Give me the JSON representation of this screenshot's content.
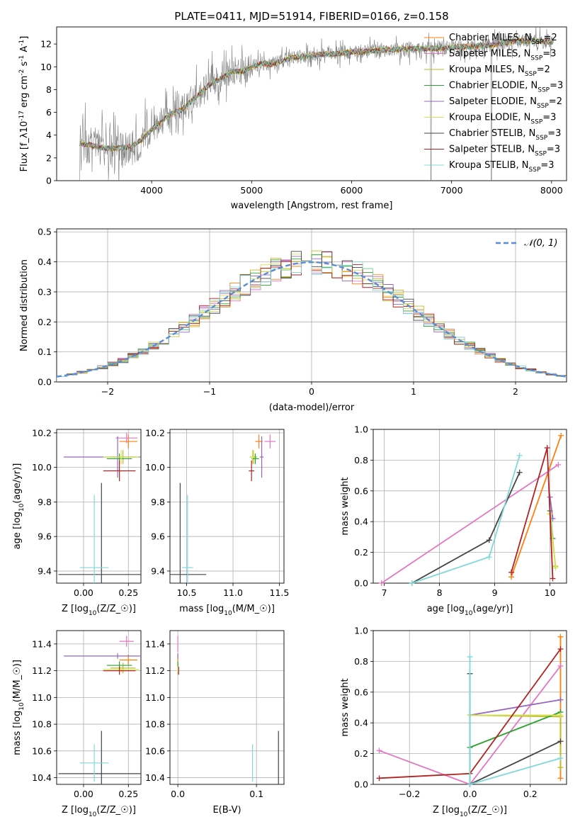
{
  "colors": {
    "spectrum": "#7f7f7f",
    "normal": "#5b8dd6",
    "grid": "#b0b0b0",
    "models": [
      "#ff7f0e",
      "#e377c2",
      "#bcbd22",
      "#2ca02c",
      "#9467bd",
      "#d4e157",
      "#444444",
      "#b22222",
      "#80d8d8"
    ]
  },
  "chart_data": [
    {
      "id": "spectrum",
      "type": "line",
      "title": "PLATE=0411, MJD=51914, FIBERID=0166, z=0.158",
      "xlabel": "wavelength [Angstrom, rest frame]",
      "ylabel": "Flux [f_λ 10^-17 erg cm^-2 s^-1 A^-1]",
      "xlim": [
        3050,
        8150
      ],
      "ylim": [
        0,
        13.5
      ],
      "xticks": [
        "4000",
        "5000",
        "6000",
        "7000",
        "8000"
      ],
      "yticks": [
        "0",
        "2",
        "4",
        "6",
        "8",
        "10",
        "12"
      ],
      "grid": false,
      "legend_position": "upper-right",
      "model_continuum": {
        "x": [
          3280,
          3400,
          3500,
          3600,
          3700,
          3800,
          3900,
          4000,
          4100,
          4200,
          4300,
          4400,
          4500,
          4600,
          4700,
          4800,
          4900,
          5000,
          5100,
          5200,
          5300,
          5400,
          5500,
          5600,
          5700,
          5800,
          5900,
          6000,
          6200,
          6400,
          6600,
          6800,
          7000,
          7200,
          7400,
          7600,
          7800,
          8000
        ],
        "y": [
          3.3,
          3.1,
          2.9,
          2.8,
          2.9,
          3.0,
          3.6,
          4.5,
          5.2,
          5.9,
          6.2,
          7.0,
          7.8,
          8.6,
          9.0,
          9.6,
          9.6,
          10.0,
          10.3,
          10.2,
          10.5,
          10.8,
          10.9,
          11.0,
          11.1,
          11.1,
          11.2,
          11.3,
          11.4,
          11.5,
          11.6,
          11.6,
          11.7,
          11.8,
          11.9,
          12.2,
          12.3,
          12.2
        ]
      },
      "legend": [
        "Chabrier MILES, N_SSP=2",
        "Salpeter MILES, N_SSP=3",
        "Kroupa MILES, N_SSP=2",
        "Chabrier ELODIE, N_SSP=3",
        "Salpeter ELODIE, N_SSP=2",
        "Kroupa ELODIE, N_SSP=3",
        "Chabrier STELIB, N_SSP=3",
        "Salpeter STELIB, N_SSP=3",
        "Kroupa STELIB, N_SSP=3"
      ]
    },
    {
      "id": "residuals",
      "type": "histogram",
      "xlabel": "(data-model)/error",
      "ylabel": "Normed distribution",
      "xlim": [
        -2.5,
        2.5
      ],
      "ylim": [
        0,
        0.51
      ],
      "xticks": [
        "−2",
        "−1",
        "0",
        "1",
        "2"
      ],
      "yticks": [
        "0.0",
        "0.1",
        "0.2",
        "0.3",
        "0.4",
        "0.5"
      ],
      "grid": true,
      "legend_position": "upper-right",
      "legend": [
        "𝒩(0, 1)"
      ],
      "bin_width": 0.1,
      "bins_from": -2.5
    },
    {
      "id": "age-vs-Z",
      "type": "scatter",
      "xlabel": "Z [log10(Z/Z☉)]",
      "ylabel": "age [log10(age/yr)]",
      "xlim": [
        -0.15,
        0.32
      ],
      "ylim": [
        9.33,
        10.22
      ],
      "xticks": [
        "0.00",
        "0.25"
      ],
      "yticks": [
        "9.4",
        "9.6",
        "9.8",
        "10.0",
        "10.2"
      ],
      "grid": true,
      "points": [
        {
          "x": 0.25,
          "y": 10.15,
          "xerr": 0.05,
          "yerr": 0.04
        },
        {
          "x": 0.24,
          "y": 10.17,
          "xerr": 0.06,
          "yerr": 0.03
        },
        {
          "x": 0.22,
          "y": 10.06,
          "xerr": 0.07,
          "yerr": 0.04
        },
        {
          "x": 0.2,
          "y": 10.05,
          "xerr": 0.07,
          "yerr": 0.03
        },
        {
          "x": 0.19,
          "y": 10.06,
          "xerr": 0.3,
          "yerr": 0.12
        },
        {
          "x": 0.21,
          "y": 10.06,
          "xerr": 0.1,
          "yerr": 0.04
        },
        {
          "x": 0.1,
          "y": 9.38,
          "xerr": 0.24,
          "yerr": 0.53
        },
        {
          "x": 0.2,
          "y": 9.98,
          "xerr": 0.09,
          "yerr": 0.06
        },
        {
          "x": 0.06,
          "y": 9.42,
          "xerr": 0.08,
          "yerr": 0.42
        }
      ]
    },
    {
      "id": "age-vs-mass",
      "type": "scatter",
      "xlabel": "mass [log10(M/M☉)]",
      "ylabel": "",
      "xlim": [
        10.32,
        11.55
      ],
      "ylim": [
        9.33,
        10.22
      ],
      "xticks": [
        "10.5",
        "11.0",
        "11.5"
      ],
      "yticks": [
        "9.4",
        "9.6",
        "9.8",
        "10.0",
        "10.2"
      ],
      "grid": true,
      "points": [
        {
          "x": 11.28,
          "y": 10.15,
          "xerr": 0.04,
          "yerr": 0.04
        },
        {
          "x": 11.4,
          "y": 10.15,
          "xerr": 0.06,
          "yerr": 0.04
        },
        {
          "x": 11.22,
          "y": 10.06,
          "xerr": 0.04,
          "yerr": 0.04
        },
        {
          "x": 11.24,
          "y": 10.05,
          "xerr": 0.04,
          "yerr": 0.03
        },
        {
          "x": 11.31,
          "y": 10.06,
          "xerr": 0.02,
          "yerr": 0.12
        },
        {
          "x": 11.21,
          "y": 10.06,
          "xerr": 0.02,
          "yerr": 0.04
        },
        {
          "x": 10.43,
          "y": 9.38,
          "xerr": 0.28,
          "yerr": 0.53
        },
        {
          "x": 11.2,
          "y": 9.98,
          "xerr": 0.03,
          "yerr": 0.06
        },
        {
          "x": 10.51,
          "y": 9.42,
          "xerr": 0.06,
          "yerr": 0.42
        }
      ]
    },
    {
      "id": "mass-weight-vs-age",
      "type": "line",
      "xlabel": "age [log10(age/yr)]",
      "ylabel": "mass weight",
      "xlim": [
        6.8,
        10.3
      ],
      "ylim": [
        0,
        1.0
      ],
      "xticks": [
        "7",
        "8",
        "9",
        "10"
      ],
      "yticks": [
        "0.0",
        "0.2",
        "0.4",
        "0.6",
        "0.8",
        "1.0"
      ],
      "grid": true,
      "series": [
        {
          "x": [
            9.3,
            10.2
          ],
          "y": [
            0.04,
            0.96
          ]
        },
        {
          "x": [
            6.95,
            10.15
          ],
          "y": [
            0.0,
            0.77
          ]
        },
        {
          "x": [
            10.0,
            10.1
          ],
          "y": [
            0.45,
            0.11
          ]
        },
        {
          "x": [
            10.0,
            10.05
          ],
          "y": [
            0.47,
            0.29
          ]
        },
        {
          "x": [
            10.0,
            10.05
          ],
          "y": [
            0.56,
            0.42
          ]
        },
        {
          "x": [
            10.0,
            10.1
          ],
          "y": [
            0.45,
            0.1
          ]
        },
        {
          "x": [
            7.5,
            8.9,
            9.45
          ],
          "y": [
            0.0,
            0.28,
            0.72
          ]
        },
        {
          "x": [
            9.3,
            9.95,
            10.05
          ],
          "y": [
            0.07,
            0.88,
            0.03
          ]
        },
        {
          "x": [
            7.5,
            8.9,
            9.45
          ],
          "y": [
            0.0,
            0.17,
            0.83
          ]
        }
      ]
    },
    {
      "id": "mass-vs-Z",
      "type": "scatter",
      "xlabel": "Z [log10(Z/Z☉)]",
      "ylabel": "mass [log10(M/M☉)]",
      "xlim": [
        -0.15,
        0.32
      ],
      "ylim": [
        10.35,
        11.5
      ],
      "xticks": [
        "0.00",
        "0.25"
      ],
      "yticks": [
        "10.4",
        "10.6",
        "10.8",
        "11.0",
        "11.2",
        "11.4"
      ],
      "grid": true,
      "points": [
        {
          "x": 0.25,
          "y": 11.28,
          "xerr": 0.05,
          "yerr": 0.04
        },
        {
          "x": 0.24,
          "y": 11.42,
          "xerr": 0.04,
          "yerr": 0.04
        },
        {
          "x": 0.22,
          "y": 11.22,
          "xerr": 0.07,
          "yerr": 0.04
        },
        {
          "x": 0.2,
          "y": 11.24,
          "xerr": 0.07,
          "yerr": 0.03
        },
        {
          "x": 0.19,
          "y": 11.31,
          "xerr": 0.3,
          "yerr": 0.02
        },
        {
          "x": 0.21,
          "y": 11.21,
          "xerr": 0.1,
          "yerr": 0.02
        },
        {
          "x": 0.1,
          "y": 10.43,
          "xerr": 0.24,
          "yerr": 0.32
        },
        {
          "x": 0.2,
          "y": 11.2,
          "xerr": 0.09,
          "yerr": 0.03
        },
        {
          "x": 0.06,
          "y": 10.51,
          "xerr": 0.08,
          "yerr": 0.14
        }
      ]
    },
    {
      "id": "mass-vs-EBV",
      "type": "scatter",
      "xlabel": "E(B-V)",
      "ylabel": "",
      "xlim": [
        -0.01,
        0.135
      ],
      "ylim": [
        10.35,
        11.5
      ],
      "xticks": [
        "0.0",
        "0.1"
      ],
      "yticks": [
        "10.4",
        "10.6",
        "10.8",
        "11.0",
        "11.2",
        "11.4"
      ],
      "grid": true,
      "points": [
        {
          "x": 0.0,
          "y": 11.28,
          "xerr": 0.0,
          "yerr": 0.04
        },
        {
          "x": 0.0,
          "y": 11.4,
          "xerr": 0.0,
          "yerr": 0.06
        },
        {
          "x": 0.0,
          "y": 11.22,
          "xerr": 0.0,
          "yerr": 0.04
        },
        {
          "x": 0.0,
          "y": 11.24,
          "xerr": 0.0,
          "yerr": 0.03
        },
        {
          "x": 0.0,
          "y": 11.31,
          "xerr": 0.0,
          "yerr": 0.02
        },
        {
          "x": 0.0,
          "y": 11.21,
          "xerr": 0.0,
          "yerr": 0.02
        },
        {
          "x": 0.128,
          "y": 10.43,
          "xerr": 0.0,
          "yerr": 0.32
        },
        {
          "x": 0.001,
          "y": 11.2,
          "xerr": 0.0,
          "yerr": 0.03
        },
        {
          "x": 0.095,
          "y": 10.51,
          "xerr": 0.0,
          "yerr": 0.14
        }
      ]
    },
    {
      "id": "mass-weight-vs-Z",
      "type": "line",
      "xlabel": "Z [log10(Z/Z☉)]",
      "ylabel": "mass weight",
      "xlim": [
        -0.32,
        0.32
      ],
      "ylim": [
        0,
        1.0
      ],
      "xticks": [
        "−0.2",
        "0.0",
        "0.2"
      ],
      "yticks": [
        "0.0",
        "0.2",
        "0.4",
        "0.6",
        "0.8",
        "1.0"
      ],
      "grid": true,
      "series": [
        {
          "x": [
            0.3,
            0.3
          ],
          "y": [
            0.04,
            0.96
          ]
        },
        {
          "x": [
            -0.3,
            0.0,
            0.3
          ],
          "y": [
            0.22,
            0.0,
            0.77
          ]
        },
        {
          "x": [
            0.0,
            0.3,
            0.3
          ],
          "y": [
            0.45,
            0.44,
            0.11
          ]
        },
        {
          "x": [
            0.0,
            0.3
          ],
          "y": [
            0.24,
            0.47
          ]
        },
        {
          "x": [
            0.0,
            0.3
          ],
          "y": [
            0.45,
            0.55
          ]
        },
        {
          "x": [
            0.0,
            0.3
          ],
          "y": [
            0.45,
            0.45
          ]
        },
        {
          "x": [
            0.0,
            0.0,
            0.3
          ],
          "y": [
            0.72,
            0.0,
            0.28
          ]
        },
        {
          "x": [
            -0.3,
            0.0,
            0.3
          ],
          "y": [
            0.04,
            0.07,
            0.88
          ]
        },
        {
          "x": [
            0.0,
            0.0,
            0.3
          ],
          "y": [
            0.83,
            0.0,
            0.17
          ]
        }
      ]
    }
  ]
}
